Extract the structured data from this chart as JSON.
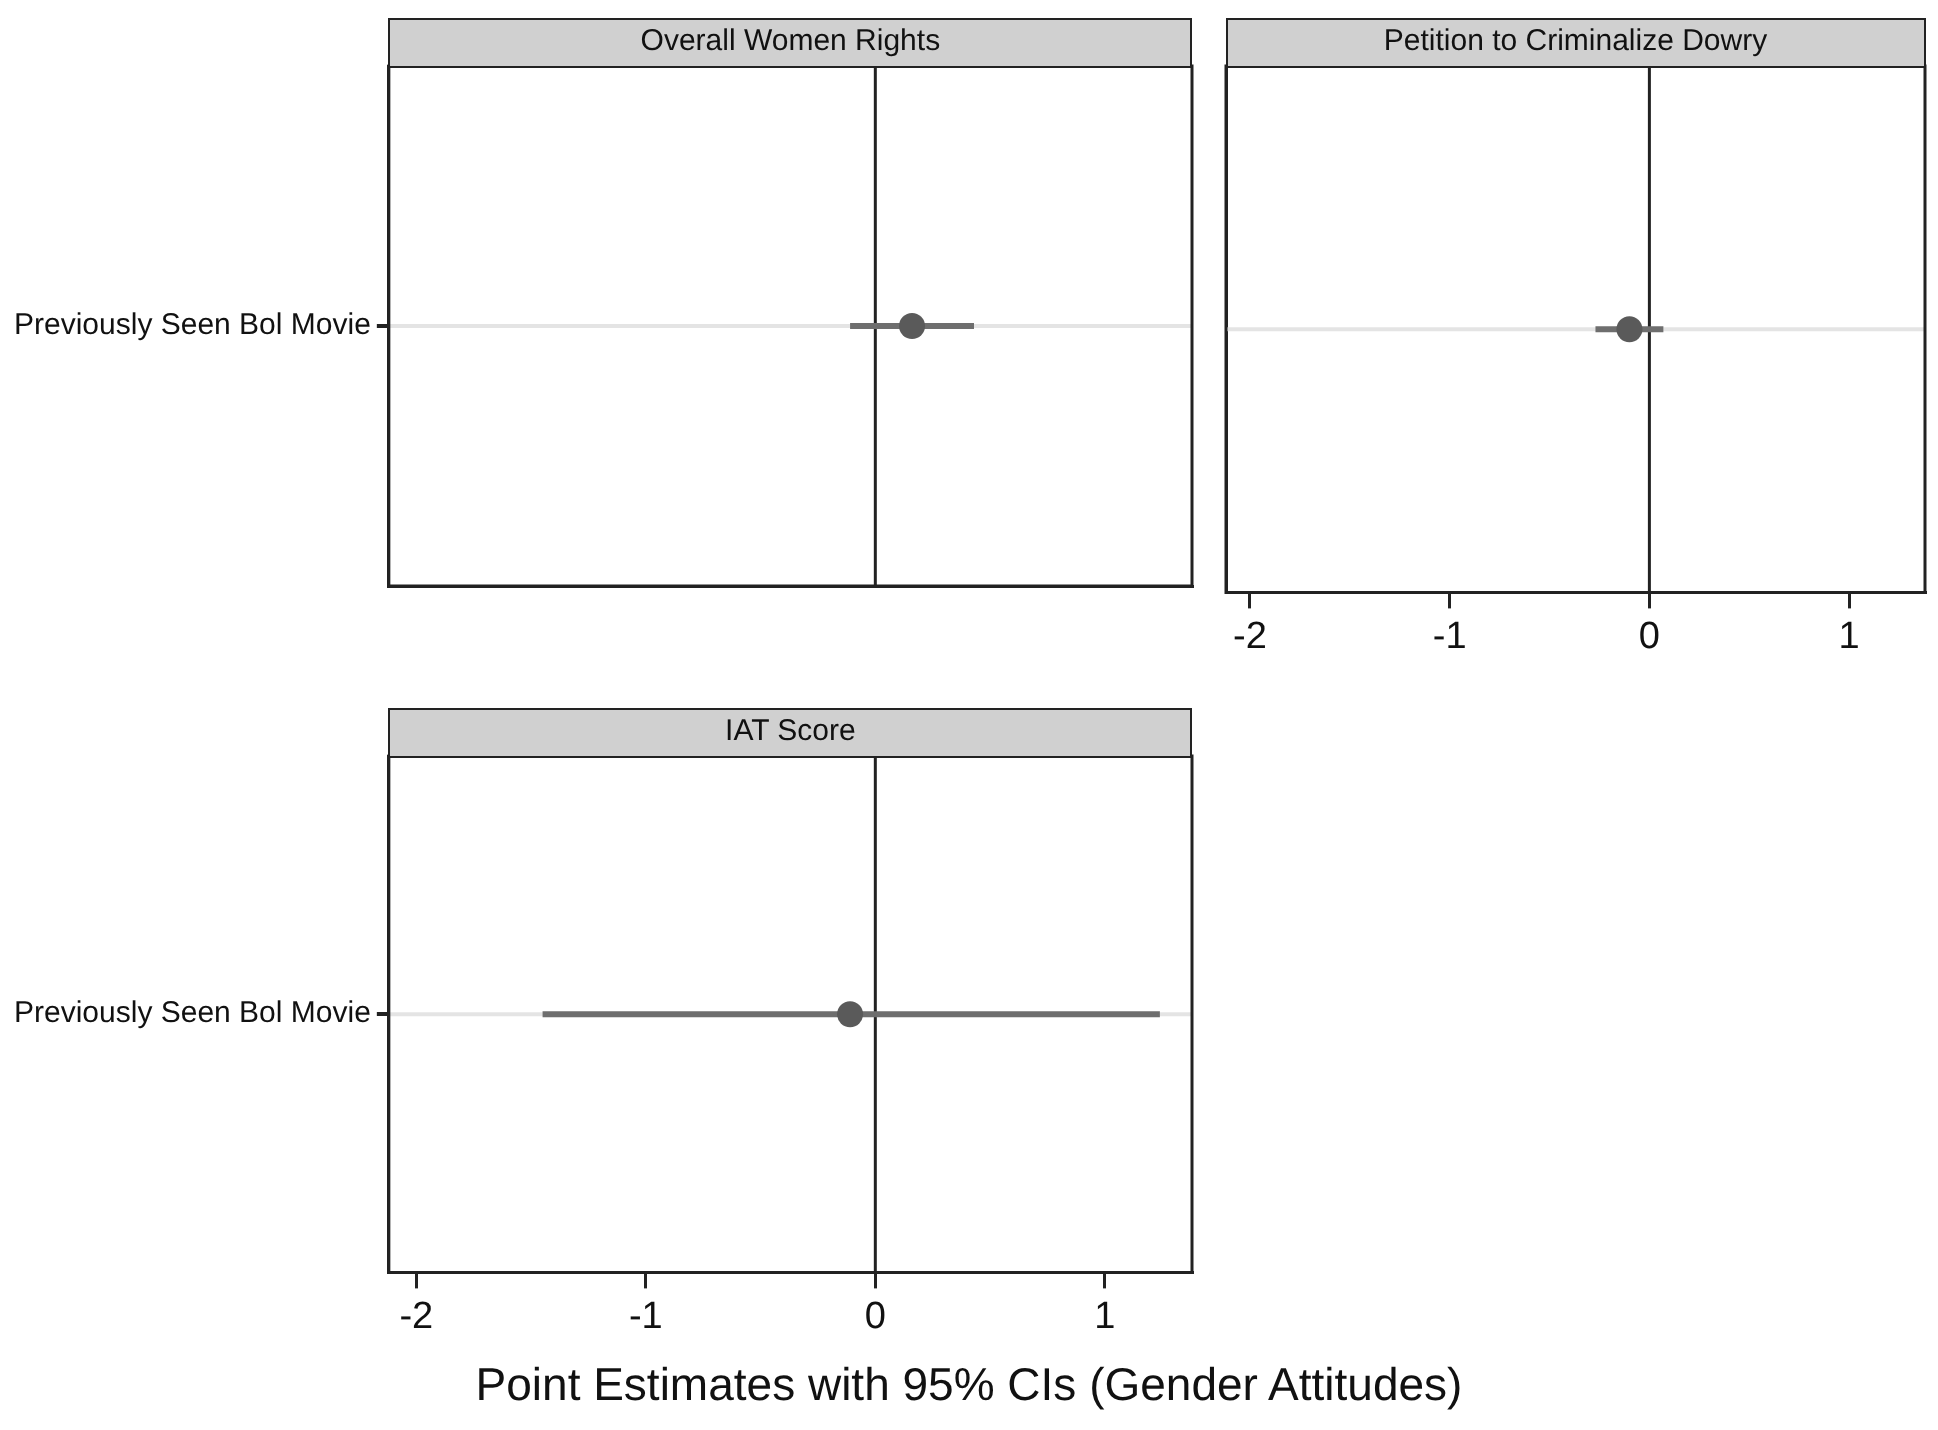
{
  "chart_data": [
    {
      "type": "scatter",
      "title": "Overall Women Rights",
      "orientation": "horizontal",
      "categories": [
        "Previously Seen Bol Movie"
      ],
      "values": [
        0.16
      ],
      "errors": [
        [
          -0.11,
          0.43
        ]
      ],
      "color": "#5a5a5a",
      "marker": "circle",
      "xlim": [
        -2.12,
        1.38
      ],
      "xticks": [
        -2,
        -1,
        0,
        1
      ],
      "ref_lines": [
        {
          "axis": "x",
          "value": 0,
          "color": "#222222"
        },
        {
          "axis": "y",
          "value": "Previously Seen Bol Movie",
          "color": "#e4e4e4"
        }
      ],
      "tick_labels": "y"
    },
    {
      "type": "scatter",
      "title": "Petition to Criminalize Dowry",
      "orientation": "horizontal",
      "categories": [
        "Previously Seen Bol Movie"
      ],
      "values": [
        -0.1
      ],
      "errors": [
        [
          -0.27,
          0.07
        ]
      ],
      "color": "#5a5a5a",
      "marker": "circle",
      "xlim": [
        -2.12,
        1.38
      ],
      "xticks": [
        -2,
        -1,
        0,
        1
      ],
      "ref_lines": [
        {
          "axis": "x",
          "value": 0,
          "color": "#222222"
        },
        {
          "axis": "y",
          "value": "Previously Seen Bol Movie",
          "color": "#e4e4e4"
        }
      ],
      "tick_labels": "x"
    },
    {
      "type": "scatter",
      "title": "IAT Score",
      "xlabel": "Point Estimates with 95% CIs (Gender Attitudes)",
      "orientation": "horizontal",
      "categories": [
        "Previously Seen Bol Movie"
      ],
      "values": [
        -0.11
      ],
      "errors": [
        [
          -1.45,
          1.24
        ]
      ],
      "color": "#5a5a5a",
      "marker": "circle",
      "xlim": [
        -2.12,
        1.38
      ],
      "xticks": [
        -2,
        -1,
        0,
        1
      ],
      "ref_lines": [
        {
          "axis": "x",
          "value": 0,
          "color": "#222222"
        },
        {
          "axis": "y",
          "value": "Previously Seen Bol Movie",
          "color": "#e4e4e4"
        }
      ]
    }
  ]
}
